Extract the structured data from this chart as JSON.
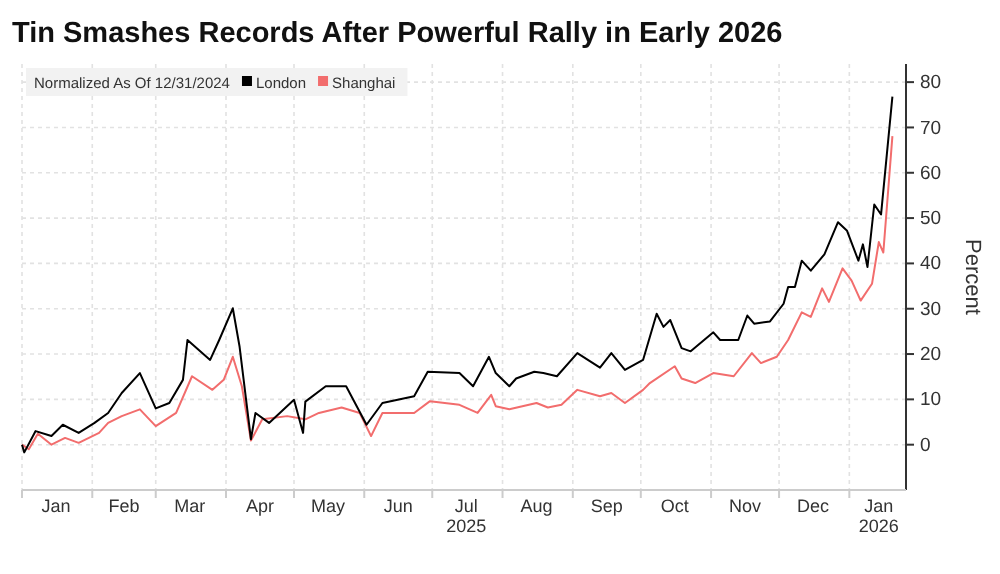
{
  "chart_data": {
    "type": "line",
    "title": "Tin Smashes Records After Powerful Rally in Early 2026",
    "legend_title": "Normalized As Of 12/31/2024",
    "ylabel": "Percent",
    "legend": "top left",
    "grid": true,
    "line_style": "solid",
    "marker": "none",
    "xlim": [
      "2025-01-01",
      "2026-01-26"
    ],
    "ylim": [
      -10,
      84
    ],
    "yticks": [
      0,
      10,
      20,
      30,
      40,
      50,
      60,
      70,
      80
    ],
    "xticks": [
      {
        "value": "2025-01-01",
        "label": null
      },
      {
        "value": "2025-01-16",
        "label": "Jan"
      },
      {
        "value": "2025-02-01",
        "label": null
      },
      {
        "value": "2025-02-15",
        "label": "Feb"
      },
      {
        "value": "2025-03-01",
        "label": null
      },
      {
        "value": "2025-03-16",
        "label": "Mar"
      },
      {
        "value": "2025-04-01",
        "label": null
      },
      {
        "value": "2025-04-16",
        "label": "Apr"
      },
      {
        "value": "2025-05-01",
        "label": null
      },
      {
        "value": "2025-05-16",
        "label": "May"
      },
      {
        "value": "2025-06-01",
        "label": null
      },
      {
        "value": "2025-06-16",
        "label": "Jun"
      },
      {
        "value": "2025-07-01",
        "label": null
      },
      {
        "value": "2025-07-16",
        "label": "Jul\n2025"
      },
      {
        "value": "2025-08-01",
        "label": null
      },
      {
        "value": "2025-08-16",
        "label": "Aug"
      },
      {
        "value": "2025-09-01",
        "label": null
      },
      {
        "value": "2025-09-16",
        "label": "Sep"
      },
      {
        "value": "2025-10-01",
        "label": null
      },
      {
        "value": "2025-10-16",
        "label": "Oct"
      },
      {
        "value": "2025-11-01",
        "label": null
      },
      {
        "value": "2025-11-16",
        "label": "Nov"
      },
      {
        "value": "2025-12-01",
        "label": null
      },
      {
        "value": "2025-12-16",
        "label": "Dec"
      },
      {
        "value": "2026-01-01",
        "label": null
      },
      {
        "value": "2026-01-14",
        "label": "Jan\n2026"
      }
    ],
    "series": [
      {
        "name": "London",
        "color": "#000000",
        "x": [
          "2025-01-01",
          "2025-01-02",
          "2025-01-07",
          "2025-01-14",
          "2025-01-19",
          "2025-01-26",
          "2025-02-02",
          "2025-02-08",
          "2025-02-14",
          "2025-02-22",
          "2025-03-01",
          "2025-03-07",
          "2025-03-13",
          "2025-03-15",
          "2025-03-20",
          "2025-03-25",
          "2025-03-29",
          "2025-04-04",
          "2025-04-07",
          "2025-04-12",
          "2025-04-14",
          "2025-04-20",
          "2025-05-01",
          "2025-05-05",
          "2025-05-06",
          "2025-05-15",
          "2025-05-24",
          "2025-06-02",
          "2025-06-09",
          "2025-06-23",
          "2025-06-29",
          "2025-07-13",
          "2025-07-19",
          "2025-07-26",
          "2025-07-29",
          "2025-08-04",
          "2025-08-07",
          "2025-08-15",
          "2025-08-19",
          "2025-08-25",
          "2025-09-03",
          "2025-09-13",
          "2025-09-18",
          "2025-09-24",
          "2025-10-02",
          "2025-10-08",
          "2025-10-11",
          "2025-10-14",
          "2025-10-19",
          "2025-10-23",
          "2025-11-02",
          "2025-11-05",
          "2025-11-13",
          "2025-11-17",
          "2025-11-20",
          "2025-11-27",
          "2025-12-03",
          "2025-12-05",
          "2025-12-08",
          "2025-12-11",
          "2025-12-15",
          "2025-12-21",
          "2025-12-27",
          "2025-12-31",
          "2026-01-05",
          "2026-01-07",
          "2026-01-09",
          "2026-01-12",
          "2026-01-15",
          "2026-01-20"
        ],
        "values": [
          0,
          -1.7,
          3,
          1.9,
          4.4,
          2.6,
          4.8,
          7,
          11.4,
          15.8,
          8,
          9.2,
          14.3,
          23.1,
          20.9,
          18.7,
          23.1,
          30.1,
          21.6,
          1.2,
          7,
          4.8,
          9.9,
          2.6,
          9.5,
          12.9,
          12.9,
          4.4,
          9.2,
          10.7,
          16.1,
          15.8,
          12.9,
          19.4,
          15.8,
          12.9,
          14.6,
          16.1,
          15.8,
          15.1,
          20.2,
          17,
          20.2,
          16.5,
          18.7,
          28.9,
          26,
          27.5,
          21.3,
          20.6,
          24.8,
          23.1,
          23.1,
          28.5,
          26.7,
          27.2,
          31.1,
          34.8,
          34.8,
          40.6,
          38.4,
          42,
          49.1,
          47.2,
          40.6,
          44.2,
          39.2,
          53,
          50.8,
          76.8
        ]
      },
      {
        "name": "Shanghai",
        "color": "#f26d6d",
        "x": [
          "2025-01-01",
          "2025-01-04",
          "2025-01-08",
          "2025-01-14",
          "2025-01-20",
          "2025-01-26",
          "2025-02-04",
          "2025-02-08",
          "2025-02-14",
          "2025-02-22",
          "2025-03-01",
          "2025-03-10",
          "2025-03-17",
          "2025-03-26",
          "2025-03-31",
          "2025-04-04",
          "2025-04-08",
          "2025-04-12",
          "2025-04-17",
          "2025-04-28",
          "2025-05-06",
          "2025-05-12",
          "2025-05-22",
          "2025-05-30",
          "2025-06-04",
          "2025-06-09",
          "2025-06-23",
          "2025-06-30",
          "2025-07-13",
          "2025-07-21",
          "2025-07-27",
          "2025-07-29",
          "2025-08-04",
          "2025-08-16",
          "2025-08-21",
          "2025-08-27",
          "2025-09-03",
          "2025-09-13",
          "2025-09-18",
          "2025-09-24",
          "2025-10-02",
          "2025-10-05",
          "2025-10-16",
          "2025-10-19",
          "2025-10-25",
          "2025-11-02",
          "2025-11-11",
          "2025-11-19",
          "2025-11-23",
          "2025-11-30",
          "2025-12-05",
          "2025-12-11",
          "2025-12-15",
          "2025-12-20",
          "2025-12-23",
          "2025-12-29",
          "2026-01-02",
          "2026-01-06",
          "2026-01-11",
          "2026-01-14",
          "2026-01-16",
          "2026-01-20"
        ],
        "values": [
          0,
          -1,
          2.4,
          0,
          1.5,
          0.4,
          2.6,
          4.8,
          6.3,
          7.8,
          4.1,
          7,
          15.1,
          12.1,
          14.3,
          19.4,
          12.9,
          0.9,
          5.6,
          6.3,
          5.6,
          7,
          8.2,
          7,
          1.9,
          7,
          7,
          9.6,
          8.8,
          7,
          11,
          8.5,
          7.8,
          9.2,
          8.2,
          8.8,
          12.1,
          10.7,
          11.4,
          9.2,
          12.1,
          13.6,
          17.3,
          14.6,
          13.6,
          15.8,
          15.1,
          20.2,
          18,
          19.4,
          23.1,
          29.2,
          28.2,
          34.5,
          31.5,
          38.9,
          36.2,
          31.8,
          35.5,
          44.7,
          42.4,
          68.1
        ]
      }
    ]
  }
}
